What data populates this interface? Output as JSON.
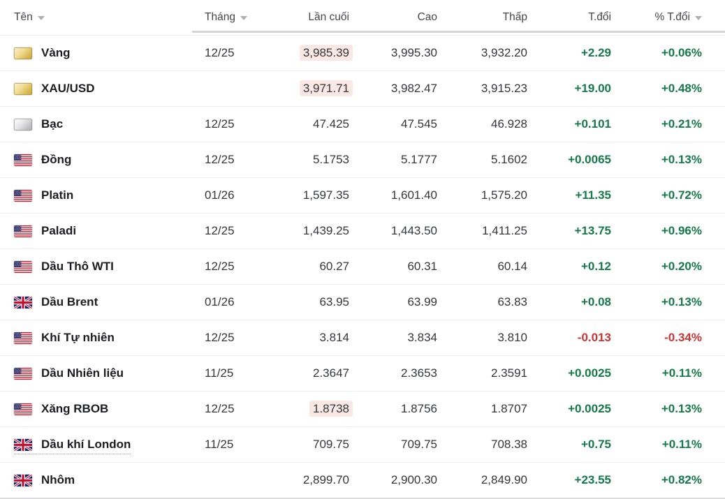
{
  "colors": {
    "positive": "#15794a",
    "negative": "#c93434",
    "flash_bg": "#fae8e5",
    "header_rule": "#d3d4d8"
  },
  "table": {
    "columns": [
      {
        "label": "Tên",
        "sort_arrow": true,
        "align": "left"
      },
      {
        "label": "Tháng",
        "sort_arrow": true,
        "align": "left"
      },
      {
        "label": "Lần cuối",
        "sort_arrow": false,
        "align": "right"
      },
      {
        "label": "Cao",
        "sort_arrow": false,
        "align": "right"
      },
      {
        "label": "Thấp",
        "sort_arrow": false,
        "align": "right"
      },
      {
        "label": "T.đổi",
        "sort_arrow": false,
        "align": "right"
      },
      {
        "label": "% T.đổi",
        "sort_arrow": true,
        "align": "right"
      }
    ],
    "rows": [
      {
        "name": "Vàng",
        "icon": "gold-bar",
        "month": "12/25",
        "last": "3,985.39",
        "high": "3,995.30",
        "low": "3,932.20",
        "change": "+2.29",
        "change_pct": "+0.06%",
        "direction": "up",
        "last_flash": true,
        "name_underline": false
      },
      {
        "name": "XAU/USD",
        "icon": "gold-bar",
        "month": "",
        "last": "3,971.71",
        "high": "3,982.47",
        "low": "3,915.23",
        "change": "+19.00",
        "change_pct": "+0.48%",
        "direction": "up",
        "last_flash": true,
        "name_underline": false
      },
      {
        "name": "Bạc",
        "icon": "silver-bar",
        "month": "12/25",
        "last": "47.425",
        "high": "47.545",
        "low": "46.928",
        "change": "+0.101",
        "change_pct": "+0.21%",
        "direction": "up",
        "last_flash": false,
        "name_underline": false
      },
      {
        "name": "Đồng",
        "icon": "us-flag",
        "month": "12/25",
        "last": "5.1753",
        "high": "5.1777",
        "low": "5.1602",
        "change": "+0.0065",
        "change_pct": "+0.13%",
        "direction": "up",
        "last_flash": false,
        "name_underline": false
      },
      {
        "name": "Platin",
        "icon": "us-flag",
        "month": "01/26",
        "last": "1,597.35",
        "high": "1,601.40",
        "low": "1,575.20",
        "change": "+11.35",
        "change_pct": "+0.72%",
        "direction": "up",
        "last_flash": false,
        "name_underline": false
      },
      {
        "name": "Paladi",
        "icon": "us-flag",
        "month": "12/25",
        "last": "1,439.25",
        "high": "1,443.50",
        "low": "1,411.25",
        "change": "+13.75",
        "change_pct": "+0.96%",
        "direction": "up",
        "last_flash": false,
        "name_underline": false
      },
      {
        "name": "Dầu Thô WTI",
        "icon": "us-flag",
        "month": "12/25",
        "last": "60.27",
        "high": "60.31",
        "low": "60.14",
        "change": "+0.12",
        "change_pct": "+0.20%",
        "direction": "up",
        "last_flash": false,
        "name_underline": false
      },
      {
        "name": "Dầu Brent",
        "icon": "uk-flag",
        "month": "01/26",
        "last": "63.95",
        "high": "63.99",
        "low": "63.83",
        "change": "+0.08",
        "change_pct": "+0.13%",
        "direction": "up",
        "last_flash": false,
        "name_underline": false
      },
      {
        "name": "Khí Tự nhiên",
        "icon": "us-flag",
        "month": "12/25",
        "last": "3.814",
        "high": "3.834",
        "low": "3.810",
        "change": "-0.013",
        "change_pct": "-0.34%",
        "direction": "down",
        "last_flash": false,
        "name_underline": false
      },
      {
        "name": "Dầu Nhiên liệu",
        "icon": "us-flag",
        "month": "11/25",
        "last": "2.3647",
        "high": "2.3653",
        "low": "2.3591",
        "change": "+0.0025",
        "change_pct": "+0.11%",
        "direction": "up",
        "last_flash": false,
        "name_underline": false
      },
      {
        "name": "Xăng RBOB",
        "icon": "us-flag",
        "month": "12/25",
        "last": "1.8738",
        "high": "1.8756",
        "low": "1.8707",
        "change": "+0.0025",
        "change_pct": "+0.13%",
        "direction": "up",
        "last_flash": true,
        "name_underline": false
      },
      {
        "name": "Dầu khí London",
        "icon": "uk-flag",
        "month": "11/25",
        "last": "709.75",
        "high": "709.75",
        "low": "708.38",
        "change": "+0.75",
        "change_pct": "+0.11%",
        "direction": "up",
        "last_flash": false,
        "name_underline": true
      },
      {
        "name": "Nhôm",
        "icon": "uk-flag",
        "month": "",
        "last": "2,899.70",
        "high": "2,900.30",
        "low": "2,849.90",
        "change": "+23.55",
        "change_pct": "+0.82%",
        "direction": "up",
        "last_flash": false,
        "name_underline": false
      }
    ]
  }
}
